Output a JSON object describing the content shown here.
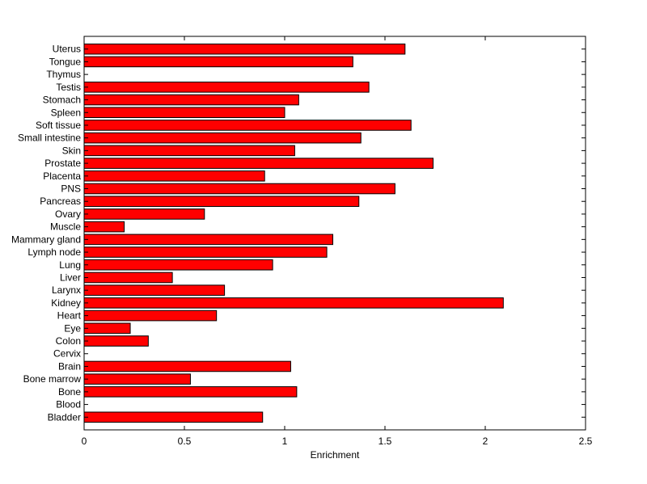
{
  "chart_data": {
    "type": "bar",
    "orientation": "horizontal",
    "xlabel": "Enrichment",
    "ylabel": "",
    "title": "",
    "xlim": [
      0,
      2.5
    ],
    "xticks": [
      0,
      0.5,
      1,
      1.5,
      2,
      2.5
    ],
    "xtick_labels": [
      "0",
      "0.5",
      "1",
      "1.5",
      "2",
      "2.5"
    ],
    "grid": false,
    "bar_color": "#ff0000",
    "categories": [
      "Uterus",
      "Tongue",
      "Thymus",
      "Testis",
      "Stomach",
      "Spleen",
      "Soft tissue",
      "Small intestine",
      "Skin",
      "Prostate",
      "Placenta",
      "PNS",
      "Pancreas",
      "Ovary",
      "Muscle",
      "Mammary gland",
      "Lymph node",
      "Lung",
      "Liver",
      "Larynx",
      "Kidney",
      "Heart",
      "Eye",
      "Colon",
      "Cervix",
      "Brain",
      "Bone marrow",
      "Bone",
      "Blood",
      "Bladder"
    ],
    "values": [
      1.6,
      1.34,
      0,
      1.42,
      1.07,
      1.0,
      1.63,
      1.38,
      1.05,
      1.74,
      0.9,
      1.55,
      1.37,
      0.6,
      0.2,
      1.24,
      1.21,
      0.94,
      0.44,
      0.7,
      2.09,
      0.66,
      0.23,
      0.32,
      0,
      1.03,
      0.53,
      1.06,
      0,
      0.89
    ]
  }
}
